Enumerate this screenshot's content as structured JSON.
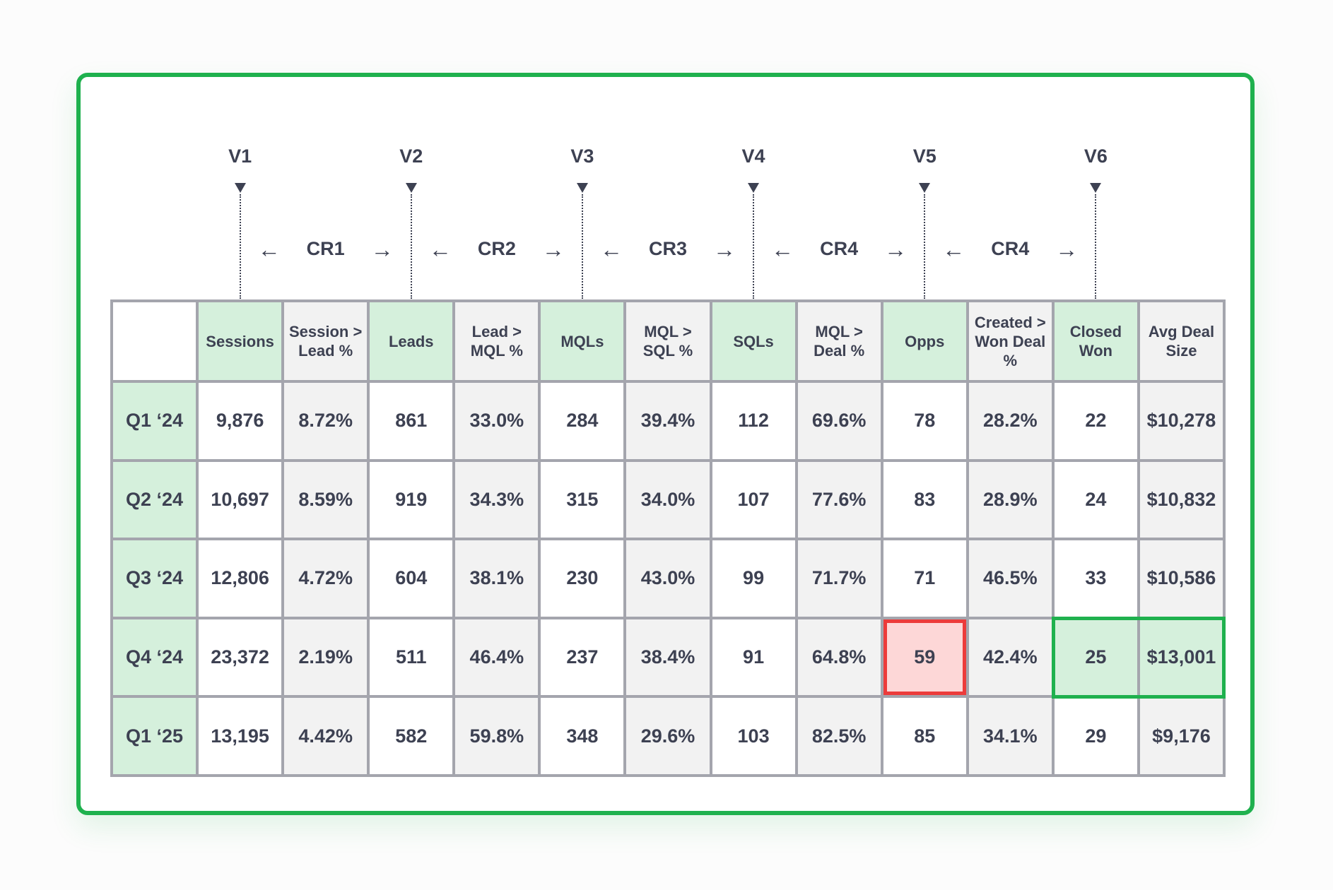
{
  "volumes": [
    "V1",
    "V2",
    "V3",
    "V4",
    "V5",
    "V6"
  ],
  "conversion_rates": [
    "CR1",
    "CR2",
    "CR3",
    "CR4",
    "CR4"
  ],
  "arrows": {
    "left": "←",
    "right": "→"
  },
  "colors": {
    "frame_green": "#1fb14e",
    "volume_fill": "#d5f0dc",
    "rate_fill": "#f2f2f2",
    "grid_line": "#a4a5ad",
    "alert_red": "#ec3b3b",
    "alert_fill": "#fdd7d7",
    "text": "#3d4152"
  },
  "table": {
    "headers": [
      "",
      "Sessions",
      "Session > Lead %",
      "Leads",
      "Lead > MQL %",
      "MQLs",
      "MQL > SQL %",
      "SQLs",
      "MQL > Deal %",
      "Opps",
      "Created > Won Deal %",
      "Closed Won",
      "Avg Deal Size"
    ],
    "rows": [
      [
        "Q1 ‘24",
        "9,876",
        "8.72%",
        "861",
        "33.0%",
        "284",
        "39.4%",
        "112",
        "69.6%",
        "78",
        "28.2%",
        "22",
        "$10,278"
      ],
      [
        "Q2 ‘24",
        "10,697",
        "8.59%",
        "919",
        "34.3%",
        "315",
        "34.0%",
        "107",
        "77.6%",
        "83",
        "28.9%",
        "24",
        "$10,832"
      ],
      [
        "Q3 ‘24",
        "12,806",
        "4.72%",
        "604",
        "38.1%",
        "230",
        "43.0%",
        "99",
        "71.7%",
        "71",
        "46.5%",
        "33",
        "$10,586"
      ],
      [
        "Q4 ‘24",
        "23,372",
        "2.19%",
        "511",
        "46.4%",
        "237",
        "38.4%",
        "91",
        "64.8%",
        "59",
        "42.4%",
        "25",
        "$13,001"
      ],
      [
        "Q1 ‘25",
        "13,195",
        "4.42%",
        "582",
        "59.8%",
        "348",
        "29.6%",
        "103",
        "82.5%",
        "85",
        "34.1%",
        "29",
        "$9,176"
      ]
    ],
    "highlight_low": {
      "row": 3,
      "col": 9
    },
    "highlight_high": [
      {
        "row": 3,
        "col": 11
      },
      {
        "row": 3,
        "col": 12
      }
    ]
  }
}
